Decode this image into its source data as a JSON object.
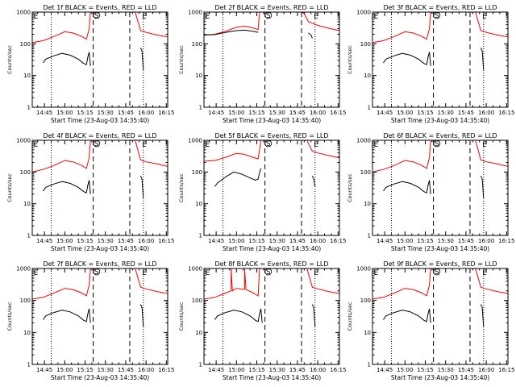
{
  "colors": {
    "events": "#000000",
    "lld": "#ff0000",
    "background": "#ffffff"
  },
  "chart_data": [
    {
      "type": "line",
      "title": "Det 1f BLACK = Events, RED = LLD",
      "xlabel": "Start Time (23-Aug-03 14:35:40)",
      "ylabel": "Counts/sec",
      "x_ticks": [
        "14:45",
        "15:00",
        "15:15",
        "15:30",
        "15:45",
        "16:00",
        "16:15"
      ],
      "y_ticks": [
        "1",
        "10",
        "100",
        "1000"
      ],
      "ylim": [
        1,
        1000
      ],
      "y_scale": "log",
      "markers": [
        "E",
        "S",
        "E"
      ],
      "series": [
        {
          "name": "LLD",
          "x": [
            "14:36",
            "14:44",
            "14:52",
            "15:00",
            "15:06",
            "15:12",
            "15:16",
            "15:18",
            "15:19",
            "15:20",
            "15:21",
            "15:24",
            "15:30",
            "15:40",
            "15:45",
            "15:47",
            "15:48",
            "15:52",
            "15:56",
            "16:00",
            "16:08",
            "16:16"
          ],
          "values": [
            110,
            125,
            170,
            240,
            220,
            175,
            140,
            300,
            1100,
            1100,
            1100,
            1100,
            1100,
            1100,
            1100,
            1100,
            1100,
            1100,
            260,
            230,
            190,
            165
          ]
        },
        {
          "name": "Events",
          "x": [
            "14:44",
            "14:46",
            "14:52",
            "14:58",
            "15:04",
            "15:10",
            "15:14",
            "15:16",
            "15:17",
            "15:18",
            "15:19"
          ],
          "values": [
            25,
            33,
            42,
            50,
            44,
            33,
            24,
            22,
            38,
            55,
            20
          ]
        },
        {
          "name": "Events",
          "x": [
            "15:56",
            "15:57",
            "15:58"
          ],
          "values": [
            75,
            60,
            15
          ]
        }
      ]
    },
    {
      "type": "line",
      "title": "Det 2f BLACK = Events, RED = LLD",
      "xlabel": "Start Time (23-Aug-03 14:35:40)",
      "ylabel": "Counts/sec",
      "x_ticks": [
        "14:45",
        "15:00",
        "15:15",
        "15:30",
        "15:45",
        "16:00",
        "16:15"
      ],
      "y_ticks": [
        "1",
        "10",
        "100",
        "1000"
      ],
      "ylim": [
        1,
        1000
      ],
      "y_scale": "log",
      "markers": [
        "E",
        "S",
        "E"
      ],
      "series": [
        {
          "name": "LLD",
          "x": [
            "14:36",
            "14:44",
            "14:52",
            "15:00",
            "15:06",
            "15:12",
            "15:16",
            "15:17",
            "15:18",
            "15:30",
            "15:40",
            "15:48",
            "15:50",
            "15:53",
            "16:00",
            "16:08",
            "16:16"
          ],
          "values": [
            190,
            200,
            250,
            330,
            360,
            320,
            280,
            1100,
            1100,
            1100,
            1100,
            1100,
            900,
            500,
            380,
            310,
            260
          ]
        },
        {
          "name": "Events",
          "x": [
            "14:36",
            "14:44",
            "14:52",
            "15:00",
            "15:06",
            "15:12",
            "15:16"
          ],
          "values": [
            190,
            195,
            230,
            260,
            270,
            250,
            230
          ]
        },
        {
          "name": "Events",
          "x": [
            "15:53",
            "15:55",
            "15:56"
          ],
          "values": [
            220,
            190,
            150
          ]
        }
      ]
    },
    {
      "type": "line",
      "title": "Det 3f BLACK = Events, RED = LLD",
      "xlabel": "Start Time (23-Aug-03 14:35:40)",
      "ylabel": "Counts/sec",
      "x_ticks": [
        "14:45",
        "15:00",
        "15:15",
        "15:30",
        "15:45",
        "16:00",
        "16:15"
      ],
      "y_ticks": [
        "1",
        "10",
        "100",
        "1000"
      ],
      "ylim": [
        1,
        1000
      ],
      "y_scale": "log",
      "markers": [
        "E",
        "S",
        "E"
      ],
      "series": [
        {
          "name": "LLD",
          "x": [
            "14:36",
            "14:44",
            "14:52",
            "15:00",
            "15:06",
            "15:12",
            "15:16",
            "15:18",
            "15:19",
            "15:20",
            "15:21",
            "15:30",
            "15:45",
            "15:47",
            "15:48",
            "15:52",
            "15:56",
            "16:00",
            "16:08",
            "16:16"
          ],
          "values": [
            110,
            125,
            170,
            240,
            220,
            175,
            140,
            300,
            1100,
            1100,
            1100,
            1100,
            1100,
            1100,
            1100,
            1100,
            260,
            230,
            190,
            165
          ]
        },
        {
          "name": "Events",
          "x": [
            "14:44",
            "14:46",
            "14:52",
            "14:58",
            "15:04",
            "15:10",
            "15:14",
            "15:16",
            "15:17",
            "15:18",
            "15:19"
          ],
          "values": [
            25,
            33,
            42,
            50,
            44,
            33,
            24,
            22,
            38,
            55,
            20
          ]
        },
        {
          "name": "Events",
          "x": [
            "15:56",
            "15:57",
            "15:58"
          ],
          "values": [
            75,
            60,
            15
          ]
        }
      ]
    },
    {
      "type": "line",
      "title": "Det 4f BLACK = Events, RED = LLD",
      "xlabel": "Start Time (23-Aug-03 14:35:40)",
      "ylabel": "Counts/sec",
      "x_ticks": [
        "14:45",
        "15:00",
        "15:15",
        "15:30",
        "15:45",
        "16:00",
        "16:15"
      ],
      "y_ticks": [
        "1",
        "10",
        "100",
        "1000"
      ],
      "ylim": [
        1,
        1000
      ],
      "y_scale": "log",
      "markers": [
        "E",
        "S",
        "E"
      ],
      "series": [
        {
          "name": "LLD",
          "x": [
            "14:36",
            "14:44",
            "14:52",
            "15:00",
            "15:06",
            "15:12",
            "15:16",
            "15:18",
            "15:19",
            "15:30",
            "15:45",
            "15:48",
            "15:52",
            "15:56",
            "16:00",
            "16:08",
            "16:16"
          ],
          "values": [
            100,
            120,
            160,
            230,
            210,
            165,
            130,
            280,
            1100,
            1100,
            1100,
            1100,
            1100,
            240,
            210,
            180,
            150
          ]
        },
        {
          "name": "Events",
          "x": [
            "14:44",
            "14:46",
            "14:52",
            "14:58",
            "15:04",
            "15:10",
            "15:14",
            "15:16",
            "15:17",
            "15:18",
            "15:19"
          ],
          "values": [
            25,
            33,
            42,
            50,
            44,
            33,
            24,
            22,
            38,
            55,
            20
          ]
        },
        {
          "name": "Events",
          "x": [
            "15:56",
            "15:57",
            "15:58"
          ],
          "values": [
            75,
            60,
            15
          ]
        }
      ]
    },
    {
      "type": "line",
      "title": "Det 5f BLACK = Events, RED = LLD",
      "xlabel": "Start Time (23-Aug-03 14:35:40)",
      "ylabel": "Counts/sec",
      "x_ticks": [
        "14:45",
        "15:00",
        "15:15",
        "15:30",
        "15:45",
        "16:00",
        "16:15"
      ],
      "y_ticks": [
        "1",
        "10",
        "100",
        "1000"
      ],
      "ylim": [
        1,
        1000
      ],
      "y_scale": "log",
      "markers": [
        "E",
        "S",
        "E"
      ],
      "series": [
        {
          "name": "LLD",
          "x": [
            "14:36",
            "14:44",
            "14:52",
            "15:00",
            "15:06",
            "15:12",
            "15:16",
            "15:17",
            "15:18",
            "15:30",
            "15:45",
            "15:47",
            "15:48",
            "15:52",
            "15:56",
            "16:00",
            "16:08",
            "16:16"
          ],
          "values": [
            220,
            230,
            290,
            390,
            360,
            290,
            260,
            500,
            1100,
            1100,
            1100,
            1100,
            1100,
            1100,
            450,
            400,
            330,
            280
          ]
        },
        {
          "name": "Events",
          "x": [
            "14:44",
            "14:46",
            "14:52",
            "14:58",
            "15:04",
            "15:10",
            "15:14",
            "15:16",
            "15:17",
            "15:18"
          ],
          "values": [
            35,
            45,
            70,
            100,
            85,
            65,
            55,
            60,
            95,
            130
          ]
        },
        {
          "name": "Events",
          "x": [
            "15:56",
            "15:57",
            "15:58"
          ],
          "values": [
            75,
            60,
            35
          ]
        }
      ]
    },
    {
      "type": "line",
      "title": "Det 6f BLACK = Events, RED = LLD",
      "xlabel": "Start Time (23-Aug-03 14:35:40)",
      "ylabel": "Counts/sec",
      "x_ticks": [
        "14:45",
        "15:00",
        "15:15",
        "15:30",
        "15:45",
        "16:00",
        "16:15"
      ],
      "y_ticks": [
        "1",
        "10",
        "100",
        "1000"
      ],
      "ylim": [
        1,
        1000
      ],
      "y_scale": "log",
      "markers": [
        "E",
        "S",
        "E"
      ],
      "series": [
        {
          "name": "LLD",
          "x": [
            "14:36",
            "14:44",
            "14:52",
            "15:00",
            "15:06",
            "15:12",
            "15:16",
            "15:18",
            "15:19",
            "15:30",
            "15:45",
            "15:48",
            "15:52",
            "15:56",
            "16:00",
            "16:08",
            "16:16"
          ],
          "values": [
            100,
            120,
            160,
            230,
            210,
            165,
            130,
            280,
            1100,
            1100,
            1100,
            1100,
            1100,
            240,
            210,
            180,
            150
          ]
        },
        {
          "name": "Events",
          "x": [
            "14:44",
            "14:46",
            "14:52",
            "14:58",
            "15:04",
            "15:10",
            "15:14",
            "15:16",
            "15:17",
            "15:18",
            "15:19"
          ],
          "values": [
            25,
            33,
            42,
            50,
            44,
            33,
            24,
            22,
            38,
            55,
            20
          ]
        },
        {
          "name": "Events",
          "x": [
            "15:56",
            "15:57",
            "15:58"
          ],
          "values": [
            75,
            60,
            15
          ]
        }
      ]
    },
    {
      "type": "line",
      "title": "Det 7f BLACK = Events, RED = LLD",
      "xlabel": "Start Time (23-Aug-03 14:35:40)",
      "ylabel": "Counts/sec",
      "x_ticks": [
        "14:45",
        "15:00",
        "15:15",
        "15:30",
        "15:45",
        "16:00",
        "16:15"
      ],
      "y_ticks": [
        "1",
        "10",
        "100",
        "1000"
      ],
      "ylim": [
        1,
        1000
      ],
      "y_scale": "log",
      "markers": [
        "E",
        "S",
        "E"
      ],
      "series": [
        {
          "name": "LLD",
          "x": [
            "14:36",
            "14:44",
            "14:52",
            "15:00",
            "15:06",
            "15:12",
            "15:16",
            "15:18",
            "15:19",
            "15:30",
            "15:45",
            "15:48",
            "15:52",
            "15:56",
            "16:00",
            "16:08",
            "16:16"
          ],
          "values": [
            110,
            125,
            170,
            240,
            220,
            175,
            140,
            300,
            1100,
            1100,
            1100,
            1100,
            1100,
            260,
            230,
            190,
            165
          ]
        },
        {
          "name": "Events",
          "x": [
            "14:44",
            "14:46",
            "14:52",
            "14:58",
            "15:04",
            "15:10",
            "15:14",
            "15:16",
            "15:17",
            "15:18",
            "15:19"
          ],
          "values": [
            25,
            33,
            42,
            50,
            44,
            33,
            24,
            22,
            38,
            55,
            20
          ]
        },
        {
          "name": "Events",
          "x": [
            "15:56",
            "15:57",
            "15:58"
          ],
          "values": [
            75,
            60,
            15
          ]
        }
      ]
    },
    {
      "type": "line",
      "title": "Det 8f BLACK = Events, RED = LLD",
      "xlabel": "Start Time (23-Aug-03 14:35:40)",
      "ylabel": "Counts/sec",
      "x_ticks": [
        "14:45",
        "15:00",
        "15:15",
        "15:30",
        "15:45",
        "16:00",
        "16:15"
      ],
      "y_ticks": [
        "1",
        "10",
        "100",
        "1000"
      ],
      "ylim": [
        1,
        1000
      ],
      "y_scale": "log",
      "markers": [
        "E",
        "S",
        "E"
      ],
      "series": [
        {
          "name": "LLD",
          "x": [
            "14:36",
            "14:44",
            "14:52",
            "14:56",
            "14:56",
            "14:57",
            "15:00",
            "15:06",
            "15:06",
            "15:07",
            "15:12",
            "15:16",
            "15:17",
            "15:18",
            "15:30",
            "15:45",
            "15:48",
            "15:52",
            "15:56",
            "16:00",
            "16:08",
            "16:16"
          ],
          "values": [
            110,
            125,
            170,
            200,
            1100,
            200,
            240,
            220,
            1100,
            220,
            175,
            140,
            1100,
            1100,
            1100,
            1100,
            1100,
            1100,
            260,
            230,
            190,
            165
          ]
        },
        {
          "name": "Events",
          "x": [
            "14:44",
            "14:46",
            "14:52",
            "14:58",
            "15:04",
            "15:10",
            "15:14",
            "15:16",
            "15:17",
            "15:18",
            "15:19"
          ],
          "values": [
            25,
            33,
            42,
            50,
            44,
            33,
            24,
            22,
            38,
            55,
            20
          ]
        },
        {
          "name": "Events",
          "x": [
            "15:56",
            "15:57",
            "15:58"
          ],
          "values": [
            75,
            60,
            15
          ]
        }
      ]
    },
    {
      "type": "line",
      "title": "Det 9f BLACK = Events, RED = LLD",
      "xlabel": "Start Time (23-Aug-03 14:35:40)",
      "ylabel": "Counts/sec",
      "x_ticks": [
        "14:45",
        "15:00",
        "15:15",
        "15:30",
        "15:45",
        "16:00",
        "16:15"
      ],
      "y_ticks": [
        "1",
        "10",
        "100",
        "1000"
      ],
      "ylim": [
        1,
        1000
      ],
      "y_scale": "log",
      "markers": [
        "E",
        "S",
        "E"
      ],
      "series": [
        {
          "name": "LLD",
          "x": [
            "14:36",
            "14:44",
            "14:52",
            "15:00",
            "15:06",
            "15:12",
            "15:16",
            "15:18",
            "15:19",
            "15:30",
            "15:45",
            "15:48",
            "15:52",
            "15:56",
            "16:00",
            "16:08",
            "16:16"
          ],
          "values": [
            110,
            125,
            170,
            240,
            220,
            175,
            140,
            300,
            1100,
            1100,
            1100,
            1100,
            1100,
            260,
            230,
            190,
            165
          ]
        },
        {
          "name": "Events",
          "x": [
            "14:44",
            "14:46",
            "14:52",
            "14:58",
            "15:04",
            "15:10",
            "15:14",
            "15:16",
            "15:17",
            "15:18",
            "15:19"
          ],
          "values": [
            25,
            33,
            42,
            50,
            44,
            33,
            24,
            22,
            38,
            55,
            20
          ]
        },
        {
          "name": "Events",
          "x": [
            "15:56",
            "15:57",
            "15:58"
          ],
          "values": [
            75,
            60,
            15
          ]
        }
      ]
    }
  ]
}
